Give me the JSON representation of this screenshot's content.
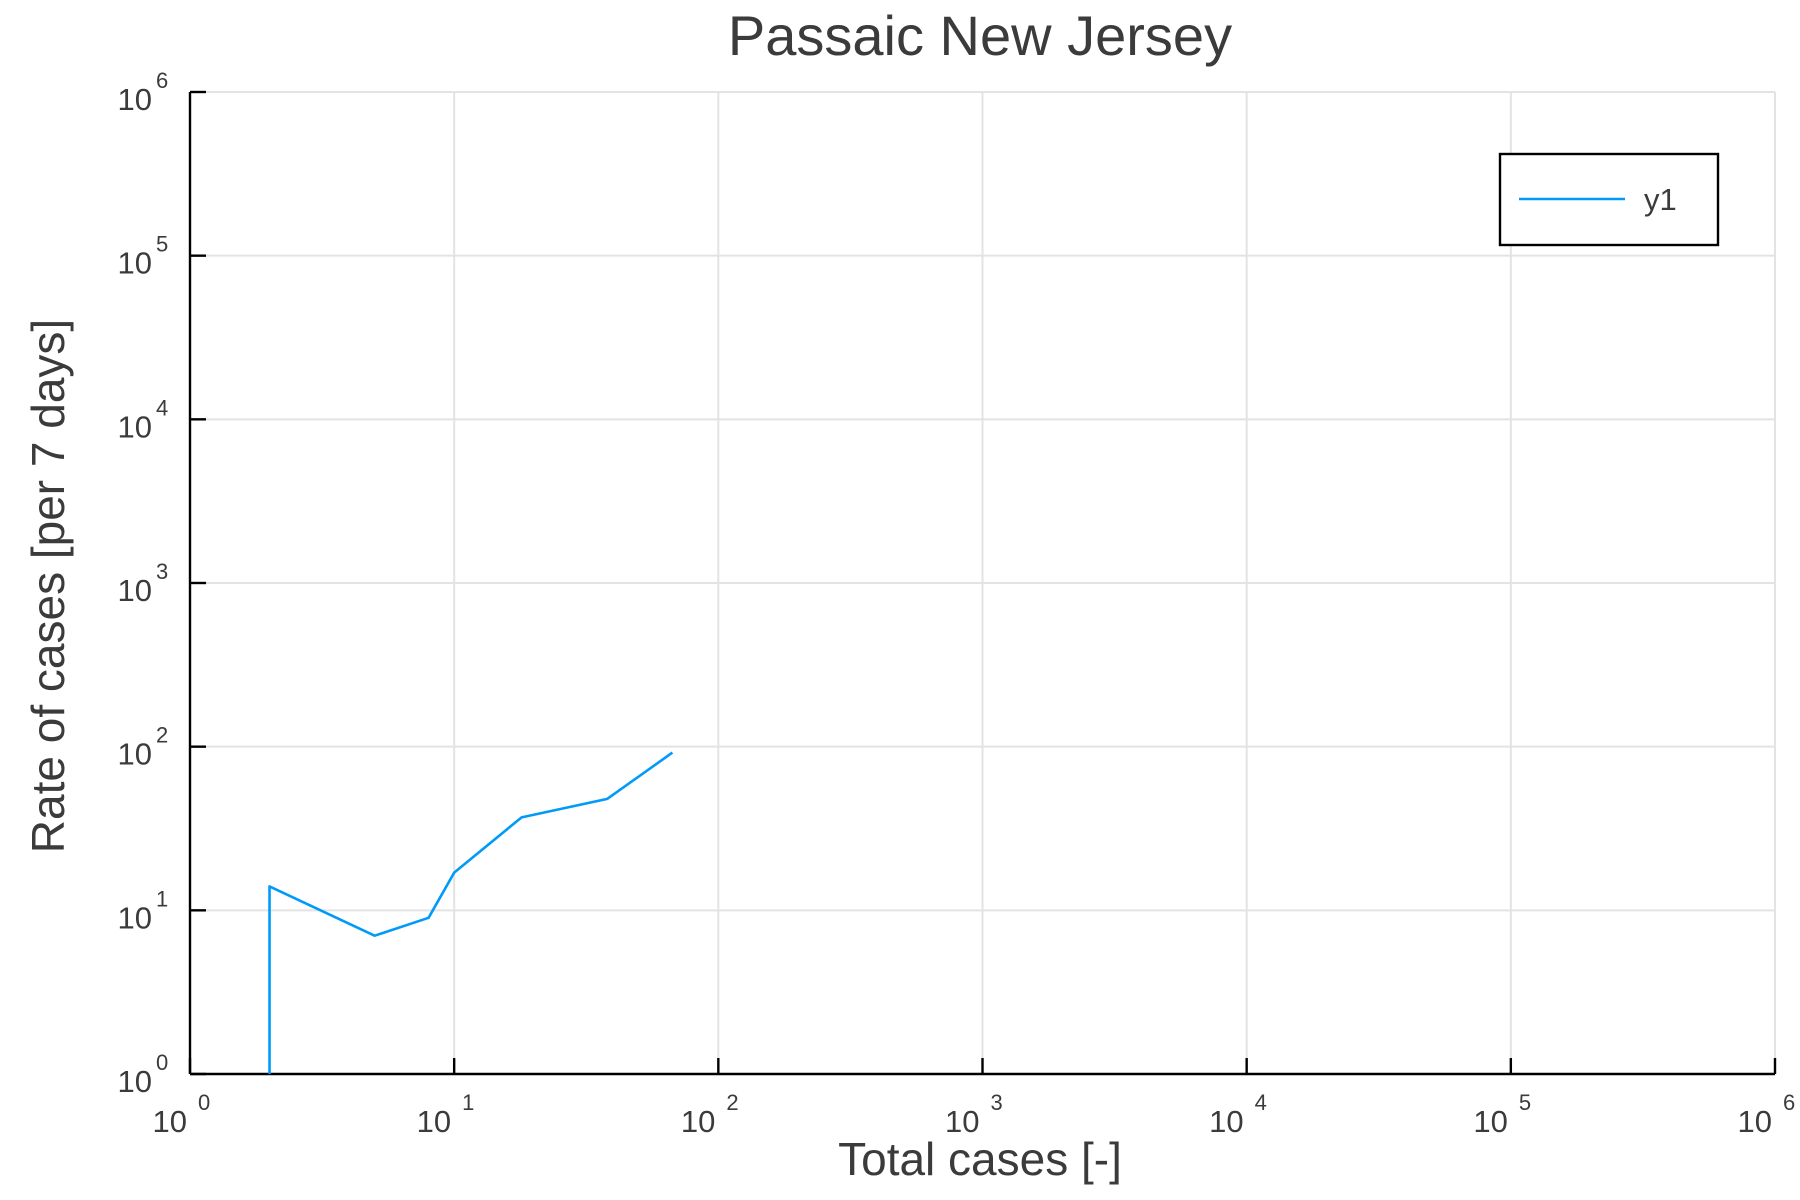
{
  "chart_data": {
    "type": "line",
    "title": "Passaic New Jersey",
    "xlabel": "Total cases [-]",
    "ylabel": "Rate of cases [per 7 days]",
    "x_scale": "log",
    "y_scale": "log",
    "xlim": [
      1,
      1000000
    ],
    "ylim": [
      1,
      1000000
    ],
    "x_ticks": [
      {
        "base": "10",
        "exp": "0",
        "value": 1
      },
      {
        "base": "10",
        "exp": "1",
        "value": 10
      },
      {
        "base": "10",
        "exp": "2",
        "value": 100
      },
      {
        "base": "10",
        "exp": "3",
        "value": 1000
      },
      {
        "base": "10",
        "exp": "4",
        "value": 10000
      },
      {
        "base": "10",
        "exp": "5",
        "value": 100000
      },
      {
        "base": "10",
        "exp": "6",
        "value": 1000000
      }
    ],
    "y_ticks": [
      {
        "base": "10",
        "exp": "0",
        "value": 1
      },
      {
        "base": "10",
        "exp": "1",
        "value": 10
      },
      {
        "base": "10",
        "exp": "2",
        "value": 100
      },
      {
        "base": "10",
        "exp": "3",
        "value": 1000
      },
      {
        "base": "10",
        "exp": "4",
        "value": 10000
      },
      {
        "base": "10",
        "exp": "5",
        "value": 100000
      },
      {
        "base": "10",
        "exp": "6",
        "value": 1000000
      }
    ],
    "grid": true,
    "legend": {
      "position": "top-right"
    },
    "series": [
      {
        "name": "y1",
        "color": "#009af9",
        "points": [
          {
            "x": 2,
            "y": 1
          },
          {
            "x": 2,
            "y": 14
          },
          {
            "x": 5,
            "y": 7
          },
          {
            "x": 8,
            "y": 9
          },
          {
            "x": 10,
            "y": 17
          },
          {
            "x": 18,
            "y": 37
          },
          {
            "x": 38,
            "y": 48
          },
          {
            "x": 67,
            "y": 92
          }
        ]
      }
    ]
  }
}
